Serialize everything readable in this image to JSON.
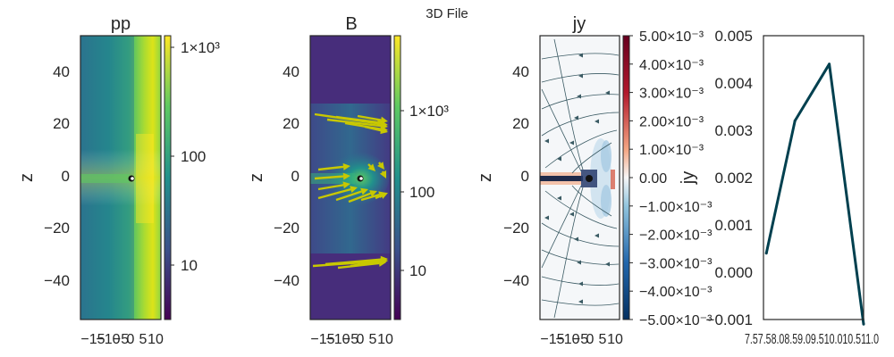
{
  "figure_title": "3D File",
  "colors": {
    "line": "#00404f",
    "arrow": "#c8c800",
    "stream": "#3a5a63",
    "frame": "#262626"
  },
  "chart_data": [
    {
      "type": "heatmap",
      "title": "pp",
      "xlabel": "",
      "ylabel": "z",
      "x_ticks": [
        "−15",
        "−10",
        "−5",
        "0",
        "5",
        "10"
      ],
      "y_ticks": [
        "40",
        "20",
        "0",
        "−20",
        "−40"
      ],
      "ylim": [
        -55,
        55
      ],
      "colormap": "viridis",
      "colorbar_scale": "log",
      "colorbar_ticks": [
        "1×10³",
        "100",
        "10"
      ]
    },
    {
      "type": "heatmap",
      "title": "B",
      "xlabel": "",
      "ylabel": "z",
      "x_ticks": [
        "−15",
        "−10",
        "−5",
        "0",
        "5",
        "10"
      ],
      "y_ticks": [
        "40",
        "20",
        "0",
        "−20",
        "−40"
      ],
      "ylim": [
        -55,
        55
      ],
      "colormap": "viridis",
      "colorbar_scale": "log",
      "colorbar_ticks": [
        "1×10³",
        "100",
        "10"
      ],
      "overlay": "quiver"
    },
    {
      "type": "heatmap",
      "title": "jy",
      "xlabel": "",
      "ylabel": "z",
      "x_ticks": [
        "−15",
        "−10",
        "−5",
        "0",
        "5",
        "10"
      ],
      "y_ticks": [
        "40",
        "20",
        "0",
        "−20",
        "−40"
      ],
      "ylim": [
        -55,
        55
      ],
      "colormap": "RdBu_r",
      "colorbar_ticks": [
        "5.00×10⁻³",
        "4.00×10⁻³",
        "3.00×10⁻³",
        "2.00×10⁻³",
        "1.00×10⁻³",
        "0.00",
        "−1.00×10⁻³",
        "−2.00×10⁻³",
        "−3.00×10⁻³",
        "−4.00×10⁻³",
        "−5.00×10⁻³"
      ],
      "colorbar_range": [
        -0.005,
        0.005
      ],
      "overlay": "streamlines"
    },
    {
      "type": "line",
      "title": "",
      "xlabel": "",
      "ylabel": "jy",
      "x": [
        7.6,
        8.6,
        9.8,
        11.0
      ],
      "y": [
        0.0004,
        0.0032,
        0.0044,
        -0.0011
      ],
      "xlim": [
        7.5,
        11.0
      ],
      "ylim": [
        -0.001,
        0.005
      ],
      "x_ticks": [
        "7.5",
        "7.5",
        "8.0",
        "8.5",
        "9.0",
        "9.5",
        "10.0",
        "10.5",
        "11.0"
      ],
      "y_ticks": [
        "0.005",
        "0.004",
        "0.003",
        "0.002",
        "0.001",
        "0.000",
        "−0.001"
      ]
    }
  ]
}
